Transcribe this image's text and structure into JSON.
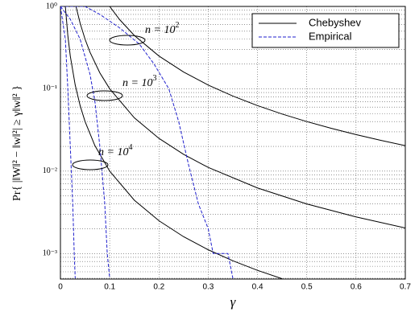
{
  "chart_data": {
    "type": "line",
    "y_scale": "log",
    "grid": true,
    "legend_position": "upper right",
    "xlabel": "γ",
    "ylabel": "Pr{ |‖W‖² − ‖w‖²| ≥ γ‖w‖² }",
    "xlim": [
      0,
      0.7
    ],
    "ylim": [
      0.00049,
      1
    ],
    "xticks": [
      0,
      0.1,
      0.2,
      0.3,
      0.4,
      0.5,
      0.6,
      0.7
    ],
    "yticks": [
      {
        "value": 1,
        "label": "10⁰"
      },
      {
        "value": 0.1,
        "label": "10⁻¹"
      },
      {
        "value": 0.01,
        "label": "10⁻²"
      },
      {
        "value": 0.001,
        "label": "10⁻³"
      }
    ],
    "legend": [
      {
        "label": "Chebyshev",
        "color": "#000000",
        "dashed": false
      },
      {
        "label": "Empirical",
        "color": "#1f1fcc",
        "dashed": true
      }
    ],
    "annotations": [
      {
        "text": "n = 10",
        "sup": "2"
      },
      {
        "text": "n = 10",
        "sup": "3"
      },
      {
        "text": "n = 10",
        "sup": "4"
      }
    ],
    "series": [
      {
        "style": 0,
        "x": [
          0.1,
          0.12,
          0.15,
          0.2,
          0.25,
          0.3,
          0.35,
          0.4,
          0.45,
          0.5,
          0.55,
          0.6,
          0.65,
          0.7
        ],
        "values": [
          1,
          0.694,
          0.444,
          0.25,
          0.16,
          0.111,
          0.0816,
          0.0625,
          0.0494,
          0.04,
          0.0331,
          0.0278,
          0.0237,
          0.0204
        ]
      },
      {
        "style": 0,
        "x": [
          0.0316,
          0.04,
          0.05,
          0.06,
          0.08,
          0.1,
          0.15,
          0.2,
          0.25,
          0.3,
          0.4,
          0.5,
          0.6,
          0.7
        ],
        "values": [
          1,
          0.625,
          0.4,
          0.278,
          0.156,
          0.1,
          0.0444,
          0.025,
          0.016,
          0.0111,
          0.00625,
          0.004,
          0.00278,
          0.00204
        ]
      },
      {
        "style": 0,
        "x": [
          0.01,
          0.015,
          0.02,
          0.03,
          0.04,
          0.05,
          0.07,
          0.1,
          0.15,
          0.2,
          0.25,
          0.3,
          0.35,
          0.4,
          0.45
        ],
        "values": [
          1,
          0.444,
          0.25,
          0.111,
          0.0625,
          0.04,
          0.0204,
          0.01,
          0.00444,
          0.0025,
          0.0016,
          0.00111,
          0.000816,
          0.000625,
          0.000494
        ]
      },
      {
        "style": 1,
        "x": [
          0,
          0.05,
          0.08,
          0.12,
          0.16,
          0.19,
          0.22,
          0.24,
          0.26,
          0.28,
          0.3,
          0.31,
          0.34,
          0.35
        ],
        "values": [
          1,
          1,
          0.8,
          0.55,
          0.35,
          0.2,
          0.1,
          0.04,
          0.012,
          0.004,
          0.002,
          0.001,
          0.001,
          0.0005
        ]
      },
      {
        "style": 1,
        "x": [
          0,
          0.02,
          0.04,
          0.06,
          0.07,
          0.08,
          0.09,
          0.095,
          0.1
        ],
        "values": [
          1,
          0.7,
          0.4,
          0.15,
          0.07,
          0.02,
          0.004,
          0.001,
          0.0005
        ]
      },
      {
        "style": 1,
        "x": [
          0,
          0.01,
          0.015,
          0.02,
          0.025,
          0.028,
          0.03
        ],
        "values": [
          1,
          0.4,
          0.1,
          0.02,
          0.004,
          0.001,
          0.0005
        ]
      }
    ]
  }
}
